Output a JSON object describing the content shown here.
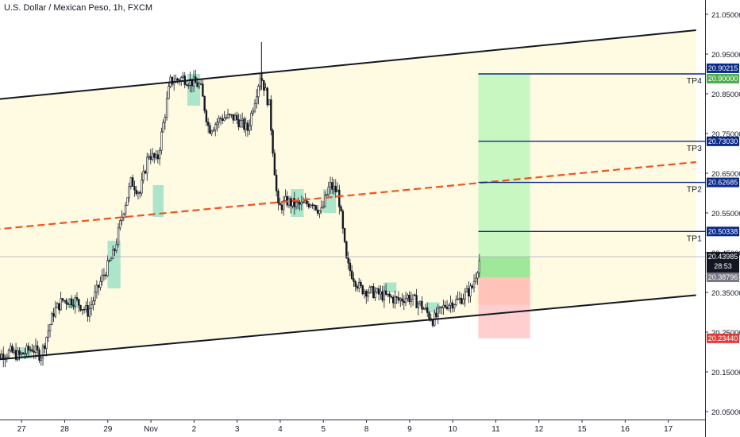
{
  "chart_data": {
    "type": "candlestick",
    "title": "U.S. Dollar / Mexican Peso, 1h, FXCM",
    "y_range": [
      20.045,
      21.07
    ],
    "x_range": [
      26.5,
      18.9
    ],
    "y_ticks": [
      "21.05000",
      "20.95000",
      "20.85000",
      "20.75000",
      "20.65000",
      "20.55000",
      "20.45000",
      "20.35000",
      "20.25000",
      "20.15000",
      "20.05000"
    ],
    "x_ticks": [
      {
        "x": 27,
        "label": "27"
      },
      {
        "x": 28,
        "label": "28"
      },
      {
        "x": 29,
        "label": "29"
      },
      {
        "x": 30,
        "label": "Nov"
      },
      {
        "x": 31,
        "label": "2"
      },
      {
        "x": 32,
        "label": "3"
      },
      {
        "x": 33,
        "label": "4"
      },
      {
        "x": 34,
        "label": "5"
      },
      {
        "x": 35,
        "label": "8"
      },
      {
        "x": 36,
        "label": "9"
      },
      {
        "x": 37,
        "label": "10"
      },
      {
        "x": 38,
        "label": "11"
      },
      {
        "x": 39,
        "label": "12"
      },
      {
        "x": 40,
        "label": "15"
      },
      {
        "x": 41,
        "label": "16"
      },
      {
        "x": 42,
        "label": "17"
      }
    ],
    "price_path": [
      [
        26.3,
        20.12
      ],
      [
        26.5,
        20.19
      ],
      [
        26.8,
        20.2
      ],
      [
        27.0,
        20.19
      ],
      [
        27.3,
        20.21
      ],
      [
        27.5,
        20.19
      ],
      [
        27.8,
        20.3
      ],
      [
        28.0,
        20.33
      ],
      [
        28.3,
        20.33
      ],
      [
        28.6,
        20.3
      ],
      [
        28.9,
        20.38
      ],
      [
        29.2,
        20.45
      ],
      [
        29.4,
        20.55
      ],
      [
        29.6,
        20.63
      ],
      [
        29.8,
        20.6
      ],
      [
        30.0,
        20.7
      ],
      [
        30.2,
        20.68
      ],
      [
        30.5,
        20.88
      ],
      [
        30.8,
        20.89
      ],
      [
        31.2,
        20.87
      ],
      [
        31.4,
        20.76
      ],
      [
        31.7,
        20.79
      ],
      [
        32.0,
        20.79
      ],
      [
        32.3,
        20.76
      ],
      [
        32.6,
        20.9
      ],
      [
        32.8,
        20.82
      ],
      [
        33.0,
        20.56
      ],
      [
        33.2,
        20.58
      ],
      [
        33.4,
        20.57
      ],
      [
        33.6,
        20.57
      ],
      [
        33.8,
        20.58
      ],
      [
        34.0,
        20.55
      ],
      [
        34.2,
        20.62
      ],
      [
        34.4,
        20.6
      ],
      [
        34.6,
        20.42
      ],
      [
        34.9,
        20.36
      ],
      [
        35.2,
        20.35
      ],
      [
        35.5,
        20.34
      ],
      [
        35.8,
        20.33
      ],
      [
        36.0,
        20.34
      ],
      [
        36.3,
        20.32
      ],
      [
        36.6,
        20.28
      ],
      [
        36.9,
        20.32
      ],
      [
        37.2,
        20.33
      ],
      [
        37.5,
        20.36
      ],
      [
        37.7,
        20.44
      ]
    ],
    "highlight_zones": [
      {
        "x0": 27.0,
        "x1": 27.3,
        "y0": 20.183,
        "y1": 20.212
      },
      {
        "x0": 28.1,
        "x1": 28.4,
        "y0": 20.31,
        "y1": 20.335
      },
      {
        "x0": 29.05,
        "x1": 29.35,
        "y0": 20.36,
        "y1": 20.48
      },
      {
        "x0": 30.1,
        "x1": 30.35,
        "y0": 20.54,
        "y1": 20.62
      },
      {
        "x0": 30.9,
        "x1": 31.2,
        "y0": 20.82,
        "y1": 20.9
      },
      {
        "x0": 33.3,
        "x1": 33.6,
        "y0": 20.54,
        "y1": 20.61
      },
      {
        "x0": 34.05,
        "x1": 34.35,
        "y0": 20.55,
        "y1": 20.61
      },
      {
        "x0": 35.45,
        "x1": 35.75,
        "y0": 20.35,
        "y1": 20.375
      },
      {
        "x0": 36.45,
        "x1": 36.75,
        "y0": 20.3,
        "y1": 20.325
      }
    ],
    "channel": {
      "upper": [
        [
          26.4,
          20.835
        ],
        [
          42.7,
          21.01
        ]
      ],
      "lower": [
        [
          26.4,
          20.18
        ],
        [
          42.7,
          20.343
        ]
      ],
      "midline": [
        [
          26.4,
          20.508
        ],
        [
          42.7,
          20.678
        ]
      ]
    },
    "position": {
      "x0": 37.65,
      "x1": 38.85,
      "entry": 20.38796,
      "stop": 20.2344,
      "target": 20.9,
      "current": 20.43985
    },
    "take_profits": [
      {
        "label": "TP1",
        "price": 20.50338,
        "price_label": "20.50338"
      },
      {
        "label": "TP2",
        "price": 20.62685,
        "price_label": "20.62685"
      },
      {
        "label": "TP3",
        "price": 20.7303,
        "price_label": "20.73030"
      },
      {
        "label": "TP4",
        "price": 20.9,
        "price_label": "20.90000"
      }
    ],
    "price_tags": [
      {
        "price": 20.90215,
        "text": "20.90215",
        "bg": "#0a2a8a",
        "color": "#ffffff"
      },
      {
        "price": 20.9,
        "text": "20.90000",
        "bg": "#4caf50",
        "color": "#ffffff"
      },
      {
        "price": 20.7303,
        "text": "20.73030",
        "bg": "#0a2a8a",
        "color": "#ffffff"
      },
      {
        "price": 20.62685,
        "text": "20.62685",
        "bg": "#0a2a8a",
        "color": "#ffffff"
      },
      {
        "price": 20.50338,
        "text": "20.50338",
        "bg": "#0a2a8a",
        "color": "#ffffff"
      },
      {
        "price": 20.43985,
        "text": "20.43985",
        "bg": "#131722",
        "color": "#ffffff"
      },
      {
        "price": 20.38796,
        "text": "20.38796",
        "bg": "#787b86",
        "color": "#ffffff"
      },
      {
        "price": 20.2344,
        "text": "20.23440",
        "bg": "#e53935",
        "color": "#ffffff"
      }
    ],
    "countdown": "28:53",
    "colors": {
      "channel_fill": "#fffbe2",
      "channel_line": "#131722",
      "midline": "#f4511e",
      "target_zone": "#c9f7c2",
      "stop_zone": "#ffcfcf",
      "stop_zone_top": "#ffb9a8",
      "candle": "#131722",
      "highlight": "#9de0c6",
      "tp_line": "#0a2a8a",
      "axis_text": "#131722"
    }
  }
}
